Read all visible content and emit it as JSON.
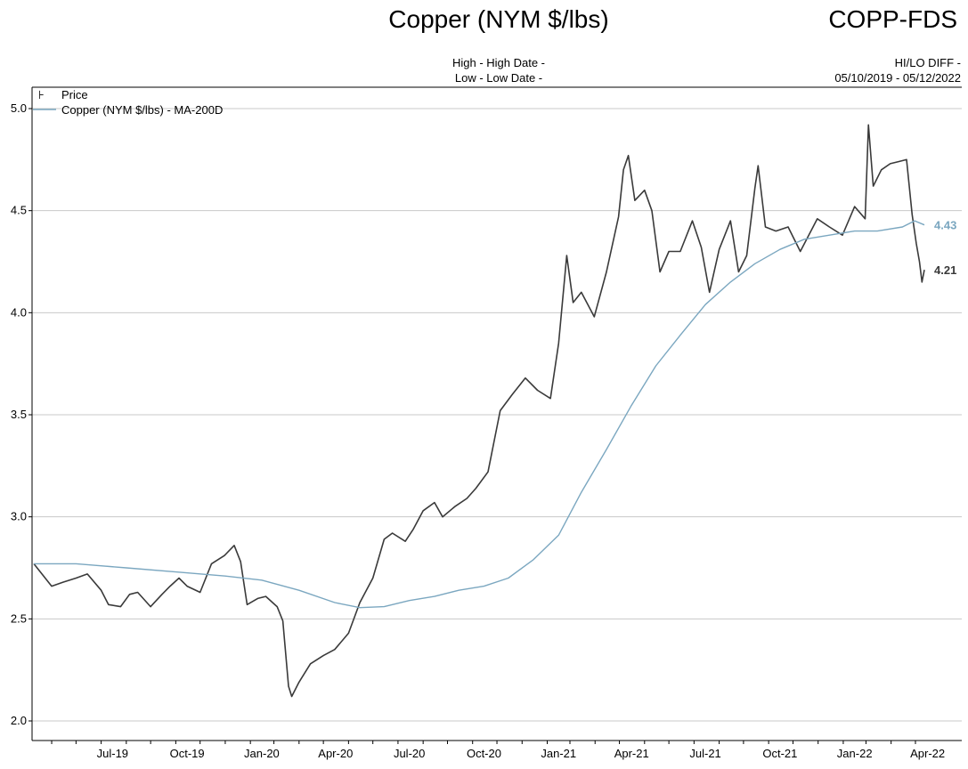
{
  "header": {
    "title": "Copper (NYM $/lbs)",
    "ticker": "COPP-FDS",
    "high_label": "High - High Date -",
    "low_label": "Low - Low Date -",
    "hilo_label": "HI/LO DIFF -",
    "date_range": "05/10/2019 - 05/12/2022"
  },
  "legend": {
    "price_symbol": "⊦",
    "price_label": "Price",
    "ma_label": "Copper (NYM $/lbs) - MA-200D"
  },
  "colors": {
    "price": "#3a3a3a",
    "ma": "#7ba7c0",
    "grid": "#c8c8c8",
    "axis": "#000000"
  },
  "chart_data": {
    "type": "line",
    "title": "Copper (NYM $/lbs)",
    "xlabel": "",
    "ylabel": "",
    "ylim": [
      2.0,
      5.0
    ],
    "y_ticks": [
      "2.0",
      "2.5",
      "3.0",
      "3.5",
      "4.0",
      "4.5",
      "5.0"
    ],
    "x_tick_labels": [
      "Jul-19",
      "Oct-19",
      "Jan-20",
      "Apr-20",
      "Jul-20",
      "Oct-20",
      "Jan-21",
      "Apr-21",
      "Jul-21",
      "Oct-21",
      "Jan-22",
      "Apr-22"
    ],
    "x_tick_dates": [
      "2019-07-01",
      "2019-10-01",
      "2020-01-01",
      "2020-04-01",
      "2020-07-01",
      "2020-10-01",
      "2021-01-01",
      "2021-04-01",
      "2021-07-01",
      "2021-10-01",
      "2022-01-01",
      "2022-04-01"
    ],
    "x_range": [
      "2019-05-10",
      "2022-05-12"
    ],
    "grid": true,
    "legend_position": "top-left",
    "series": [
      {
        "name": "Price",
        "points": [
          [
            "2019-05-10",
            2.77
          ],
          [
            "2019-05-20",
            2.72
          ],
          [
            "2019-06-01",
            2.66
          ],
          [
            "2019-06-15",
            2.68
          ],
          [
            "2019-07-01",
            2.7
          ],
          [
            "2019-07-15",
            2.72
          ],
          [
            "2019-08-01",
            2.64
          ],
          [
            "2019-08-10",
            2.57
          ],
          [
            "2019-08-25",
            2.56
          ],
          [
            "2019-09-05",
            2.62
          ],
          [
            "2019-09-15",
            2.63
          ],
          [
            "2019-10-01",
            2.56
          ],
          [
            "2019-10-15",
            2.62
          ],
          [
            "2019-10-25",
            2.66
          ],
          [
            "2019-11-05",
            2.7
          ],
          [
            "2019-11-15",
            2.66
          ],
          [
            "2019-12-01",
            2.63
          ],
          [
            "2019-12-15",
            2.77
          ],
          [
            "2019-12-31",
            2.81
          ],
          [
            "2020-01-12",
            2.86
          ],
          [
            "2020-01-20",
            2.78
          ],
          [
            "2020-01-28",
            2.57
          ],
          [
            "2020-02-10",
            2.6
          ],
          [
            "2020-02-20",
            2.61
          ],
          [
            "2020-03-05",
            2.56
          ],
          [
            "2020-03-12",
            2.49
          ],
          [
            "2020-03-19",
            2.17
          ],
          [
            "2020-03-23",
            2.12
          ],
          [
            "2020-04-01",
            2.19
          ],
          [
            "2020-04-15",
            2.28
          ],
          [
            "2020-05-01",
            2.32
          ],
          [
            "2020-05-15",
            2.35
          ],
          [
            "2020-06-01",
            2.43
          ],
          [
            "2020-06-15",
            2.58
          ],
          [
            "2020-07-01",
            2.7
          ],
          [
            "2020-07-15",
            2.89
          ],
          [
            "2020-07-25",
            2.92
          ],
          [
            "2020-08-10",
            2.88
          ],
          [
            "2020-08-20",
            2.94
          ],
          [
            "2020-09-01",
            3.03
          ],
          [
            "2020-09-15",
            3.07
          ],
          [
            "2020-09-25",
            3.0
          ],
          [
            "2020-10-10",
            3.05
          ],
          [
            "2020-10-25",
            3.09
          ],
          [
            "2020-11-05",
            3.14
          ],
          [
            "2020-11-20",
            3.22
          ],
          [
            "2020-12-05",
            3.52
          ],
          [
            "2020-12-20",
            3.6
          ],
          [
            "2021-01-05",
            3.68
          ],
          [
            "2021-01-20",
            3.62
          ],
          [
            "2021-02-05",
            3.58
          ],
          [
            "2021-02-15",
            3.85
          ],
          [
            "2021-02-25",
            4.28
          ],
          [
            "2021-03-05",
            4.05
          ],
          [
            "2021-03-15",
            4.1
          ],
          [
            "2021-03-31",
            3.98
          ],
          [
            "2021-04-15",
            4.2
          ],
          [
            "2021-04-30",
            4.47
          ],
          [
            "2021-05-06",
            4.7
          ],
          [
            "2021-05-12",
            4.77
          ],
          [
            "2021-05-20",
            4.55
          ],
          [
            "2021-06-01",
            4.6
          ],
          [
            "2021-06-10",
            4.5
          ],
          [
            "2021-06-20",
            4.2
          ],
          [
            "2021-07-01",
            4.3
          ],
          [
            "2021-07-15",
            4.3
          ],
          [
            "2021-07-30",
            4.45
          ],
          [
            "2021-08-10",
            4.32
          ],
          [
            "2021-08-20",
            4.1
          ],
          [
            "2021-09-01",
            4.31
          ],
          [
            "2021-09-15",
            4.45
          ],
          [
            "2021-09-25",
            4.2
          ],
          [
            "2021-10-05",
            4.28
          ],
          [
            "2021-10-15",
            4.61
          ],
          [
            "2021-10-19",
            4.72
          ],
          [
            "2021-10-28",
            4.42
          ],
          [
            "2021-11-10",
            4.4
          ],
          [
            "2021-11-25",
            4.42
          ],
          [
            "2021-12-10",
            4.3
          ],
          [
            "2021-12-31",
            4.46
          ],
          [
            "2022-01-15",
            4.42
          ],
          [
            "2022-01-31",
            4.38
          ],
          [
            "2022-02-15",
            4.52
          ],
          [
            "2022-02-28",
            4.46
          ],
          [
            "2022-03-04",
            4.92
          ],
          [
            "2022-03-10",
            4.62
          ],
          [
            "2022-03-20",
            4.7
          ],
          [
            "2022-03-31",
            4.73
          ],
          [
            "2022-04-10",
            4.74
          ],
          [
            "2022-04-20",
            4.75
          ],
          [
            "2022-04-27",
            4.48
          ],
          [
            "2022-05-02",
            4.34
          ],
          [
            "2022-05-06",
            4.25
          ],
          [
            "2022-05-09",
            4.15
          ],
          [
            "2022-05-12",
            4.21
          ]
        ]
      },
      {
        "name": "Copper (NYM $/lbs) - MA-200D",
        "points": [
          [
            "2019-05-10",
            2.77
          ],
          [
            "2019-07-01",
            2.77
          ],
          [
            "2019-09-01",
            2.75
          ],
          [
            "2019-11-01",
            2.73
          ],
          [
            "2020-01-01",
            2.71
          ],
          [
            "2020-02-15",
            2.69
          ],
          [
            "2020-04-01",
            2.64
          ],
          [
            "2020-05-15",
            2.58
          ],
          [
            "2020-06-15",
            2.555
          ],
          [
            "2020-07-15",
            2.56
          ],
          [
            "2020-08-15",
            2.59
          ],
          [
            "2020-09-15",
            2.61
          ],
          [
            "2020-10-15",
            2.64
          ],
          [
            "2020-11-15",
            2.66
          ],
          [
            "2020-12-15",
            2.7
          ],
          [
            "2021-01-15",
            2.79
          ],
          [
            "2021-02-15",
            2.91
          ],
          [
            "2021-03-15",
            3.12
          ],
          [
            "2021-04-15",
            3.33
          ],
          [
            "2021-05-15",
            3.54
          ],
          [
            "2021-06-15",
            3.74
          ],
          [
            "2021-07-15",
            3.89
          ],
          [
            "2021-08-15",
            4.04
          ],
          [
            "2021-09-15",
            4.15
          ],
          [
            "2021-10-15",
            4.24
          ],
          [
            "2021-11-15",
            4.31
          ],
          [
            "2021-12-15",
            4.36
          ],
          [
            "2022-01-15",
            4.38
          ],
          [
            "2022-02-15",
            4.4
          ],
          [
            "2022-03-15",
            4.4
          ],
          [
            "2022-04-15",
            4.42
          ],
          [
            "2022-04-30",
            4.45
          ],
          [
            "2022-05-12",
            4.43
          ]
        ]
      }
    ],
    "last_values": {
      "price": "4.21",
      "ma": "4.43"
    }
  }
}
